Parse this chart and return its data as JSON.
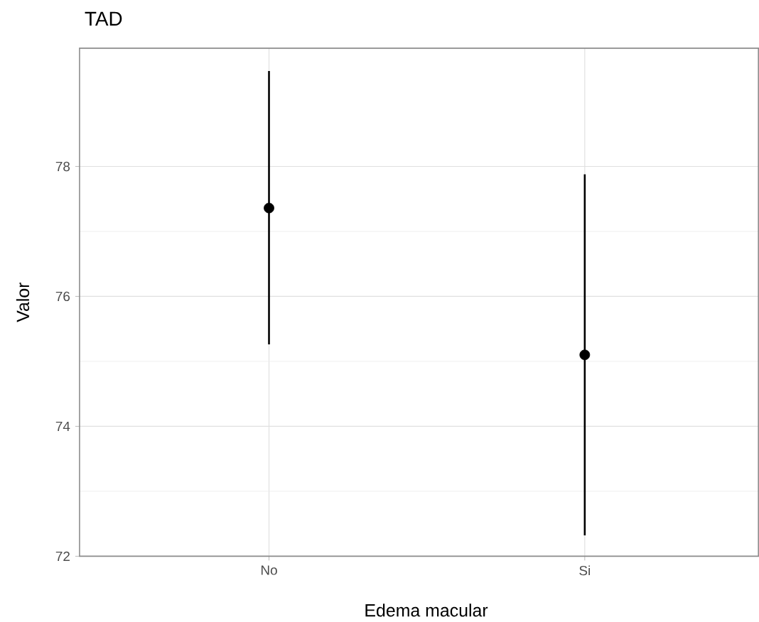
{
  "chart_data": {
    "type": "scatter",
    "title": "TAD",
    "xlabel": "Edema macular",
    "ylabel": "Valor",
    "categories": [
      "No",
      "Si"
    ],
    "values": [
      77.36,
      75.1
    ],
    "errors": [
      [
        75.26,
        79.47
      ],
      [
        72.32,
        77.88
      ]
    ],
    "color": "#000000",
    "marker": "circle",
    "ylim": [
      72,
      79.82
    ],
    "yticks": [
      72,
      74,
      76,
      78
    ],
    "grid": true
  }
}
